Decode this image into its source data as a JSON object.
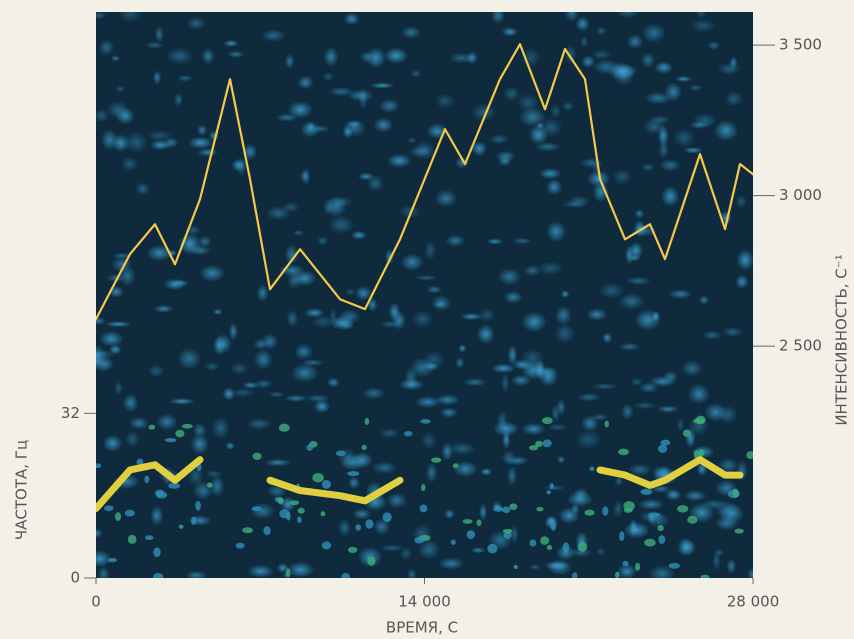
{
  "chart_data": {
    "type": "line",
    "x_label": "ВРЕМЯ, С",
    "y_label": "ЧАСТОТА, Гц",
    "y2_label": "ИНТЕНСИВНОСТЬ, С⁻¹",
    "x": [
      0,
      1450,
      2514,
      3367,
      4432,
      5711,
      6563,
      7415,
      8694,
      10400,
      11464,
      12956,
      14873,
      15726,
      17217,
      18070,
      19135,
      19988,
      20840,
      21480,
      22545,
      23610,
      24250,
      25741,
      26807,
      27446,
      28000
    ],
    "series": [
      {
        "color": "#f6c94a",
        "axis": "y2",
        "values": [
          2590,
          2806,
          2905,
          2772,
          2988,
          3387,
          3055,
          2689,
          2822,
          2656,
          2623,
          2855,
          3221,
          3105,
          3387,
          3503,
          3287,
          3487,
          3387,
          3055,
          2855,
          2905,
          2789,
          3138,
          2889,
          3105,
          3071
        ]
      },
      {
        "color": "#e0d040",
        "axis": "y",
        "values": [
          13.5,
          21,
          22,
          19,
          23,
          null,
          null,
          19,
          17,
          16,
          15,
          19,
          null,
          null,
          null,
          null,
          null,
          null,
          null,
          21,
          20,
          18,
          19,
          23,
          20,
          20,
          null
        ]
      }
    ],
    "xlim": [
      0,
      28000
    ],
    "xticks": [
      0,
      {
        "value": 14000,
        "label": "14 000"
      },
      {
        "value": 28000,
        "label": "28 000"
      }
    ],
    "ylim": [
      0,
      110
    ],
    "yticks": [
      0,
      32
    ],
    "y2lim": [
      1730,
      3610
    ],
    "y2ticks": [
      {
        "value": 2500,
        "label": "2 500"
      },
      {
        "value": 3000,
        "label": "3 000"
      },
      {
        "value": 3500,
        "label": "3 500"
      }
    ]
  }
}
